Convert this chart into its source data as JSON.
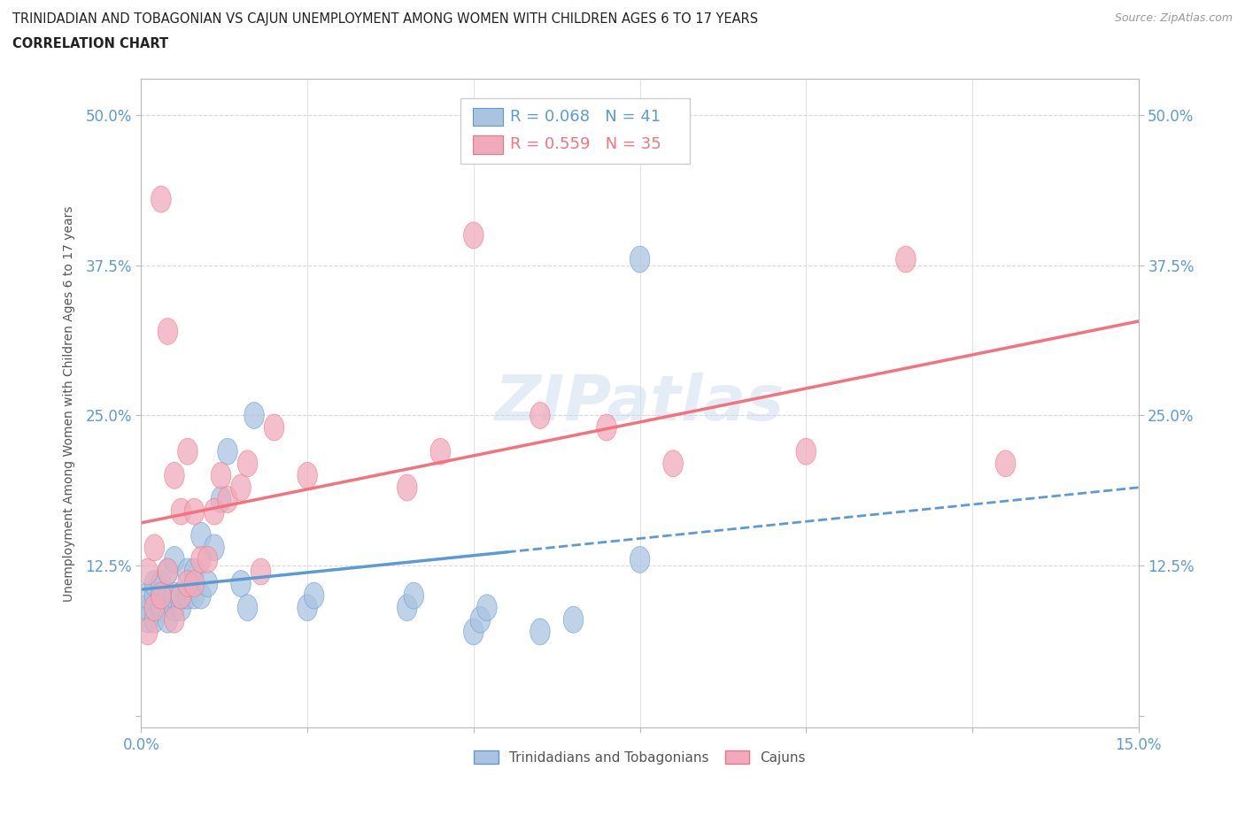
{
  "title_line1": "TRINIDADIAN AND TOBAGONIAN VS CAJUN UNEMPLOYMENT AMONG WOMEN WITH CHILDREN AGES 6 TO 17 YEARS",
  "title_line2": "CORRELATION CHART",
  "source": "Source: ZipAtlas.com",
  "ylabel": "Unemployment Among Women with Children Ages 6 to 17 years",
  "xlim": [
    0.0,
    0.15
  ],
  "ylim": [
    -0.01,
    0.53
  ],
  "xticks": [
    0.0,
    0.025,
    0.05,
    0.075,
    0.1,
    0.125,
    0.15
  ],
  "ytick_positions": [
    0.0,
    0.125,
    0.25,
    0.375,
    0.5
  ],
  "background_color": "#ffffff",
  "series1_color": "#aac4e0",
  "series2_color": "#f0aabb",
  "series1_label": "Trinidadians and Tobagonians",
  "series2_label": "Cajuns",
  "series1_R": 0.068,
  "series1_N": 41,
  "series2_R": 0.559,
  "series2_N": 35,
  "series1_line_color": "#5b9bd5",
  "series2_line_color": "#f4727e",
  "watermark": "ZIPatlas",
  "tick_color": "#5b9bd5",
  "grid_color": "#d8d8d8",
  "series1_x": [
    0.001,
    0.001,
    0.001,
    0.002,
    0.002,
    0.002,
    0.003,
    0.003,
    0.003,
    0.004,
    0.004,
    0.004,
    0.005,
    0.005,
    0.005,
    0.006,
    0.006,
    0.007,
    0.007,
    0.008,
    0.008,
    0.009,
    0.009,
    0.01,
    0.011,
    0.012,
    0.013,
    0.015,
    0.016,
    0.017,
    0.025,
    0.026,
    0.04,
    0.041,
    0.05,
    0.051,
    0.052,
    0.06,
    0.065,
    0.075,
    0.075
  ],
  "series1_y": [
    0.08,
    0.09,
    0.1,
    0.08,
    0.1,
    0.11,
    0.09,
    0.1,
    0.11,
    0.08,
    0.1,
    0.12,
    0.09,
    0.1,
    0.13,
    0.09,
    0.1,
    0.1,
    0.12,
    0.1,
    0.12,
    0.1,
    0.15,
    0.11,
    0.14,
    0.18,
    0.22,
    0.11,
    0.09,
    0.25,
    0.09,
    0.1,
    0.09,
    0.1,
    0.07,
    0.08,
    0.09,
    0.07,
    0.08,
    0.38,
    0.13
  ],
  "series2_x": [
    0.001,
    0.001,
    0.002,
    0.002,
    0.003,
    0.003,
    0.004,
    0.004,
    0.005,
    0.005,
    0.006,
    0.006,
    0.007,
    0.007,
    0.008,
    0.008,
    0.009,
    0.01,
    0.011,
    0.012,
    0.013,
    0.015,
    0.016,
    0.018,
    0.02,
    0.025,
    0.04,
    0.045,
    0.05,
    0.06,
    0.07,
    0.08,
    0.1,
    0.115,
    0.13
  ],
  "series2_y": [
    0.07,
    0.12,
    0.09,
    0.14,
    0.43,
    0.1,
    0.12,
    0.32,
    0.08,
    0.2,
    0.1,
    0.17,
    0.11,
    0.22,
    0.11,
    0.17,
    0.13,
    0.13,
    0.17,
    0.2,
    0.18,
    0.19,
    0.21,
    0.12,
    0.24,
    0.2,
    0.19,
    0.22,
    0.4,
    0.25,
    0.24,
    0.21,
    0.22,
    0.38,
    0.21
  ]
}
